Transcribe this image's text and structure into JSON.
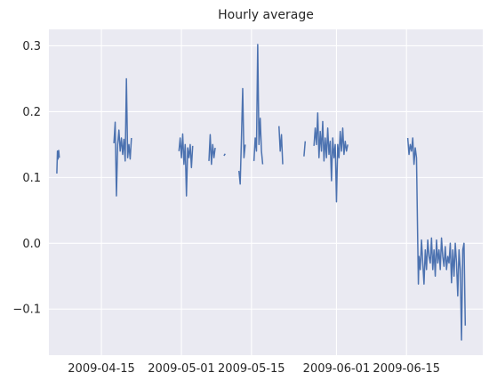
{
  "chart_data": {
    "type": "line",
    "title": "Hourly average",
    "xlabel": "",
    "ylabel": "",
    "xlim": [
      "2009-04-04T12:00",
      "2009-06-30T06:00"
    ],
    "ylim": [
      -0.17,
      0.325
    ],
    "x_ticks": [
      "2009-04-15",
      "2009-05-01",
      "2009-05-15",
      "2009-06-01",
      "2009-06-15"
    ],
    "y_ticks": [
      -0.1,
      0.0,
      0.1,
      0.2,
      0.3
    ],
    "y_tick_labels": [
      "−0.1",
      "0.0",
      "0.1",
      "0.2",
      "0.3"
    ],
    "grid": true,
    "series": [
      {
        "color": "#4c72b0",
        "segments": [
          [
            [
              "2009-04-06T02:00",
              0.106
            ],
            [
              "2009-04-06T05:00",
              0.14
            ],
            [
              "2009-04-06T08:00",
              0.128
            ],
            [
              "2009-04-06T11:00",
              0.141
            ],
            [
              "2009-04-06T14:00",
              0.13
            ]
          ],
          [
            [
              "2009-04-17T12:00",
              0.152
            ],
            [
              "2009-04-17T18:00",
              0.184
            ],
            [
              "2009-04-18T00:00",
              0.072
            ],
            [
              "2009-04-18T06:00",
              0.15
            ],
            [
              "2009-04-18T12:00",
              0.172
            ],
            [
              "2009-04-18T18:00",
              0.14
            ],
            [
              "2009-04-19T00:00",
              0.16
            ],
            [
              "2009-04-19T06:00",
              0.135
            ],
            [
              "2009-04-19T12:00",
              0.158
            ],
            [
              "2009-04-19T18:00",
              0.125
            ],
            [
              "2009-04-20T00:00",
              0.25
            ],
            [
              "2009-04-20T06:00",
              0.13
            ],
            [
              "2009-04-20T12:00",
              0.15
            ],
            [
              "2009-04-20T18:00",
              0.128
            ],
            [
              "2009-04-21T00:00",
              0.16
            ]
          ],
          [
            [
              "2009-04-30T12:00",
              0.14
            ],
            [
              "2009-04-30T18:00",
              0.16
            ],
            [
              "2009-05-01T00:00",
              0.13
            ],
            [
              "2009-05-01T06:00",
              0.166
            ],
            [
              "2009-05-01T12:00",
              0.12
            ],
            [
              "2009-05-01T18:00",
              0.15
            ],
            [
              "2009-05-02T00:00",
              0.072
            ],
            [
              "2009-05-02T06:00",
              0.145
            ],
            [
              "2009-05-02T12:00",
              0.13
            ],
            [
              "2009-05-02T18:00",
              0.15
            ],
            [
              "2009-05-03T00:00",
              0.115
            ],
            [
              "2009-05-03T06:00",
              0.148
            ]
          ],
          [
            [
              "2009-05-06T12:00",
              0.125
            ],
            [
              "2009-05-06T18:00",
              0.165
            ],
            [
              "2009-05-07T00:00",
              0.12
            ],
            [
              "2009-05-07T06:00",
              0.15
            ],
            [
              "2009-05-07T12:00",
              0.13
            ],
            [
              "2009-05-07T18:00",
              0.145
            ]
          ],
          [
            [
              "2009-05-09T12:00",
              0.133
            ],
            [
              "2009-05-09T18:00",
              0.136
            ]
          ],
          [
            [
              "2009-05-12T12:00",
              0.11
            ],
            [
              "2009-05-12T18:00",
              0.09
            ],
            [
              "2009-05-13T00:00",
              0.16
            ],
            [
              "2009-05-13T06:00",
              0.235
            ],
            [
              "2009-05-13T12:00",
              0.13
            ],
            [
              "2009-05-13T18:00",
              0.15
            ]
          ],
          [
            [
              "2009-05-15T12:00",
              0.125
            ],
            [
              "2009-05-15T18:00",
              0.16
            ],
            [
              "2009-05-16T00:00",
              0.14
            ],
            [
              "2009-05-16T06:00",
              0.302
            ],
            [
              "2009-05-16T12:00",
              0.15
            ],
            [
              "2009-05-16T18:00",
              0.19
            ],
            [
              "2009-05-17T00:00",
              0.14
            ],
            [
              "2009-05-17T06:00",
              0.12
            ]
          ],
          [
            [
              "2009-05-20T12:00",
              0.178
            ],
            [
              "2009-05-20T18:00",
              0.14
            ],
            [
              "2009-05-21T00:00",
              0.165
            ],
            [
              "2009-05-21T06:00",
              0.12
            ]
          ],
          [
            [
              "2009-05-25T12:00",
              0.132
            ],
            [
              "2009-05-25T18:00",
              0.155
            ]
          ],
          [
            [
              "2009-05-27T12:00",
              0.148
            ],
            [
              "2009-05-27T18:00",
              0.175
            ],
            [
              "2009-05-28T00:00",
              0.15
            ],
            [
              "2009-05-28T06:00",
              0.198
            ],
            [
              "2009-05-28T12:00",
              0.13
            ],
            [
              "2009-05-28T18:00",
              0.17
            ],
            [
              "2009-05-29T00:00",
              0.14
            ],
            [
              "2009-05-29T06:00",
              0.185
            ],
            [
              "2009-05-29T12:00",
              0.125
            ],
            [
              "2009-05-29T18:00",
              0.16
            ],
            [
              "2009-05-30T00:00",
              0.13
            ],
            [
              "2009-05-30T06:00",
              0.175
            ],
            [
              "2009-05-30T12:00",
              0.135
            ],
            [
              "2009-05-30T18:00",
              0.155
            ],
            [
              "2009-05-31T00:00",
              0.095
            ],
            [
              "2009-05-31T06:00",
              0.16
            ],
            [
              "2009-05-31T12:00",
              0.13
            ],
            [
              "2009-05-31T18:00",
              0.15
            ],
            [
              "2009-06-01T00:00",
              0.063
            ],
            [
              "2009-06-01T06:00",
              0.15
            ],
            [
              "2009-06-01T12:00",
              0.13
            ],
            [
              "2009-06-01T18:00",
              0.17
            ],
            [
              "2009-06-02T00:00",
              0.14
            ],
            [
              "2009-06-02T06:00",
              0.175
            ],
            [
              "2009-06-02T12:00",
              0.135
            ],
            [
              "2009-06-02T18:00",
              0.155
            ],
            [
              "2009-06-03T00:00",
              0.14
            ],
            [
              "2009-06-03T06:00",
              0.15
            ]
          ],
          [
            [
              "2009-06-15T06:00",
              0.16
            ],
            [
              "2009-06-15T12:00",
              0.135
            ],
            [
              "2009-06-15T18:00",
              0.15
            ],
            [
              "2009-06-16T00:00",
              0.14
            ],
            [
              "2009-06-16T06:00",
              0.16
            ],
            [
              "2009-06-16T12:00",
              0.12
            ],
            [
              "2009-06-16T18:00",
              0.145
            ],
            [
              "2009-06-17T00:00",
              0.13
            ],
            [
              "2009-06-17T06:00",
              0.0
            ],
            [
              "2009-06-17T09:00",
              -0.062
            ],
            [
              "2009-06-17T12:00",
              -0.02
            ],
            [
              "2009-06-17T18:00",
              -0.04
            ],
            [
              "2009-06-18T00:00",
              0.005
            ],
            [
              "2009-06-18T06:00",
              -0.03
            ],
            [
              "2009-06-18T12:00",
              -0.062
            ],
            [
              "2009-06-18T18:00",
              -0.01
            ],
            [
              "2009-06-19T00:00",
              -0.04
            ],
            [
              "2009-06-19T06:00",
              0.005
            ],
            [
              "2009-06-19T12:00",
              -0.02
            ],
            [
              "2009-06-19T18:00",
              -0.03
            ],
            [
              "2009-06-20T00:00",
              0.008
            ],
            [
              "2009-06-20T06:00",
              -0.04
            ],
            [
              "2009-06-20T12:00",
              -0.01
            ],
            [
              "2009-06-20T18:00",
              -0.05
            ],
            [
              "2009-06-21T00:00",
              0.005
            ],
            [
              "2009-06-21T06:00",
              -0.03
            ],
            [
              "2009-06-21T12:00",
              -0.01
            ],
            [
              "2009-06-21T18:00",
              -0.04
            ],
            [
              "2009-06-22T00:00",
              0.008
            ],
            [
              "2009-06-22T06:00",
              -0.02
            ],
            [
              "2009-06-22T12:00",
              -0.035
            ],
            [
              "2009-06-22T18:00",
              -0.005
            ],
            [
              "2009-06-23T00:00",
              -0.04
            ],
            [
              "2009-06-23T06:00",
              -0.02
            ],
            [
              "2009-06-23T12:00",
              -0.03
            ],
            [
              "2009-06-23T18:00",
              0.0
            ],
            [
              "2009-06-24T00:00",
              -0.06
            ],
            [
              "2009-06-24T06:00",
              -0.01
            ],
            [
              "2009-06-24T12:00",
              -0.05
            ],
            [
              "2009-06-24T18:00",
              0.0
            ],
            [
              "2009-06-25T00:00",
              -0.03
            ],
            [
              "2009-06-25T06:00",
              -0.08
            ],
            [
              "2009-06-25T12:00",
              -0.01
            ],
            [
              "2009-06-25T18:00",
              -0.04
            ],
            [
              "2009-06-26T00:00",
              -0.147
            ],
            [
              "2009-06-26T06:00",
              -0.01
            ],
            [
              "2009-06-26T12:00",
              0.0
            ],
            [
              "2009-06-26T18:00",
              -0.125
            ]
          ]
        ]
      }
    ]
  }
}
